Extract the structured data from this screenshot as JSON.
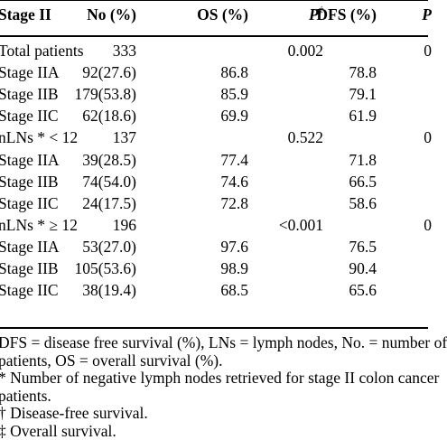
{
  "table": {
    "headers": {
      "stage": "Stage II",
      "no": "No (%)",
      "os": "OS (%)",
      "p": "P",
      "p_sup": "‡",
      "dfs": "DFS (%)",
      "extra": "P"
    },
    "rows": [
      {
        "stage": "Total patients",
        "no": "333",
        "os": "",
        "p": "0.002",
        "dfs": "",
        "extra": "0"
      },
      {
        "stage": "Stage IIA",
        "no": "92(27.6)",
        "os": "86.8",
        "p": "",
        "dfs": "78.8",
        "extra": ""
      },
      {
        "stage": "Stage IIB",
        "no": "179(53.8)",
        "os": "85.9",
        "p": "",
        "dfs": "79.1",
        "extra": ""
      },
      {
        "stage": "Stage IIC",
        "no": "62(18.6)",
        "os": "69.9",
        "p": "",
        "dfs": "61.9",
        "extra": ""
      },
      {
        "stage": "nLNs * < 12",
        "no": "137",
        "os": "",
        "p": "0.522",
        "dfs": "",
        "extra": "0"
      },
      {
        "stage": "Stage IIA",
        "no": "39(28.5)",
        "os": "77.4",
        "p": "",
        "dfs": "71.8",
        "extra": ""
      },
      {
        "stage": "Stage IIB",
        "no": "74(54.0)",
        "os": "74.6",
        "p": "",
        "dfs": "66.5",
        "extra": ""
      },
      {
        "stage": "Stage IIC",
        "no": "24(17.5)",
        "os": "72.8",
        "p": "",
        "dfs": "58.6",
        "extra": ""
      },
      {
        "stage": "nLNs * ≥ 12",
        "no": "196",
        "os": "",
        "p": "<0.001",
        "dfs": "",
        "extra": "0"
      },
      {
        "stage": "Stage IIA",
        "no": "53(27.0)",
        "os": "97.6",
        "p": "",
        "dfs": "76.5",
        "extra": ""
      },
      {
        "stage": "Stage IIB",
        "no": "105(53.6)",
        "os": "98.9",
        "p": "",
        "dfs": "90.4",
        "extra": ""
      },
      {
        "stage": "Stage IIC",
        "no": "38(19.4)",
        "os": "68.5",
        "p": "",
        "dfs": "65.6",
        "extra": ""
      }
    ]
  },
  "footnotes": [
    "DFS = disease free survival (%), LNs = lymph nodes, No. = number of",
    "patients, OS = overall survival (%).",
    "* Number of negative lymph nodes retrieved for stage II colon cancer",
    "patients.",
    "† Disease-free survival.",
    "‡ Overall survival."
  ]
}
